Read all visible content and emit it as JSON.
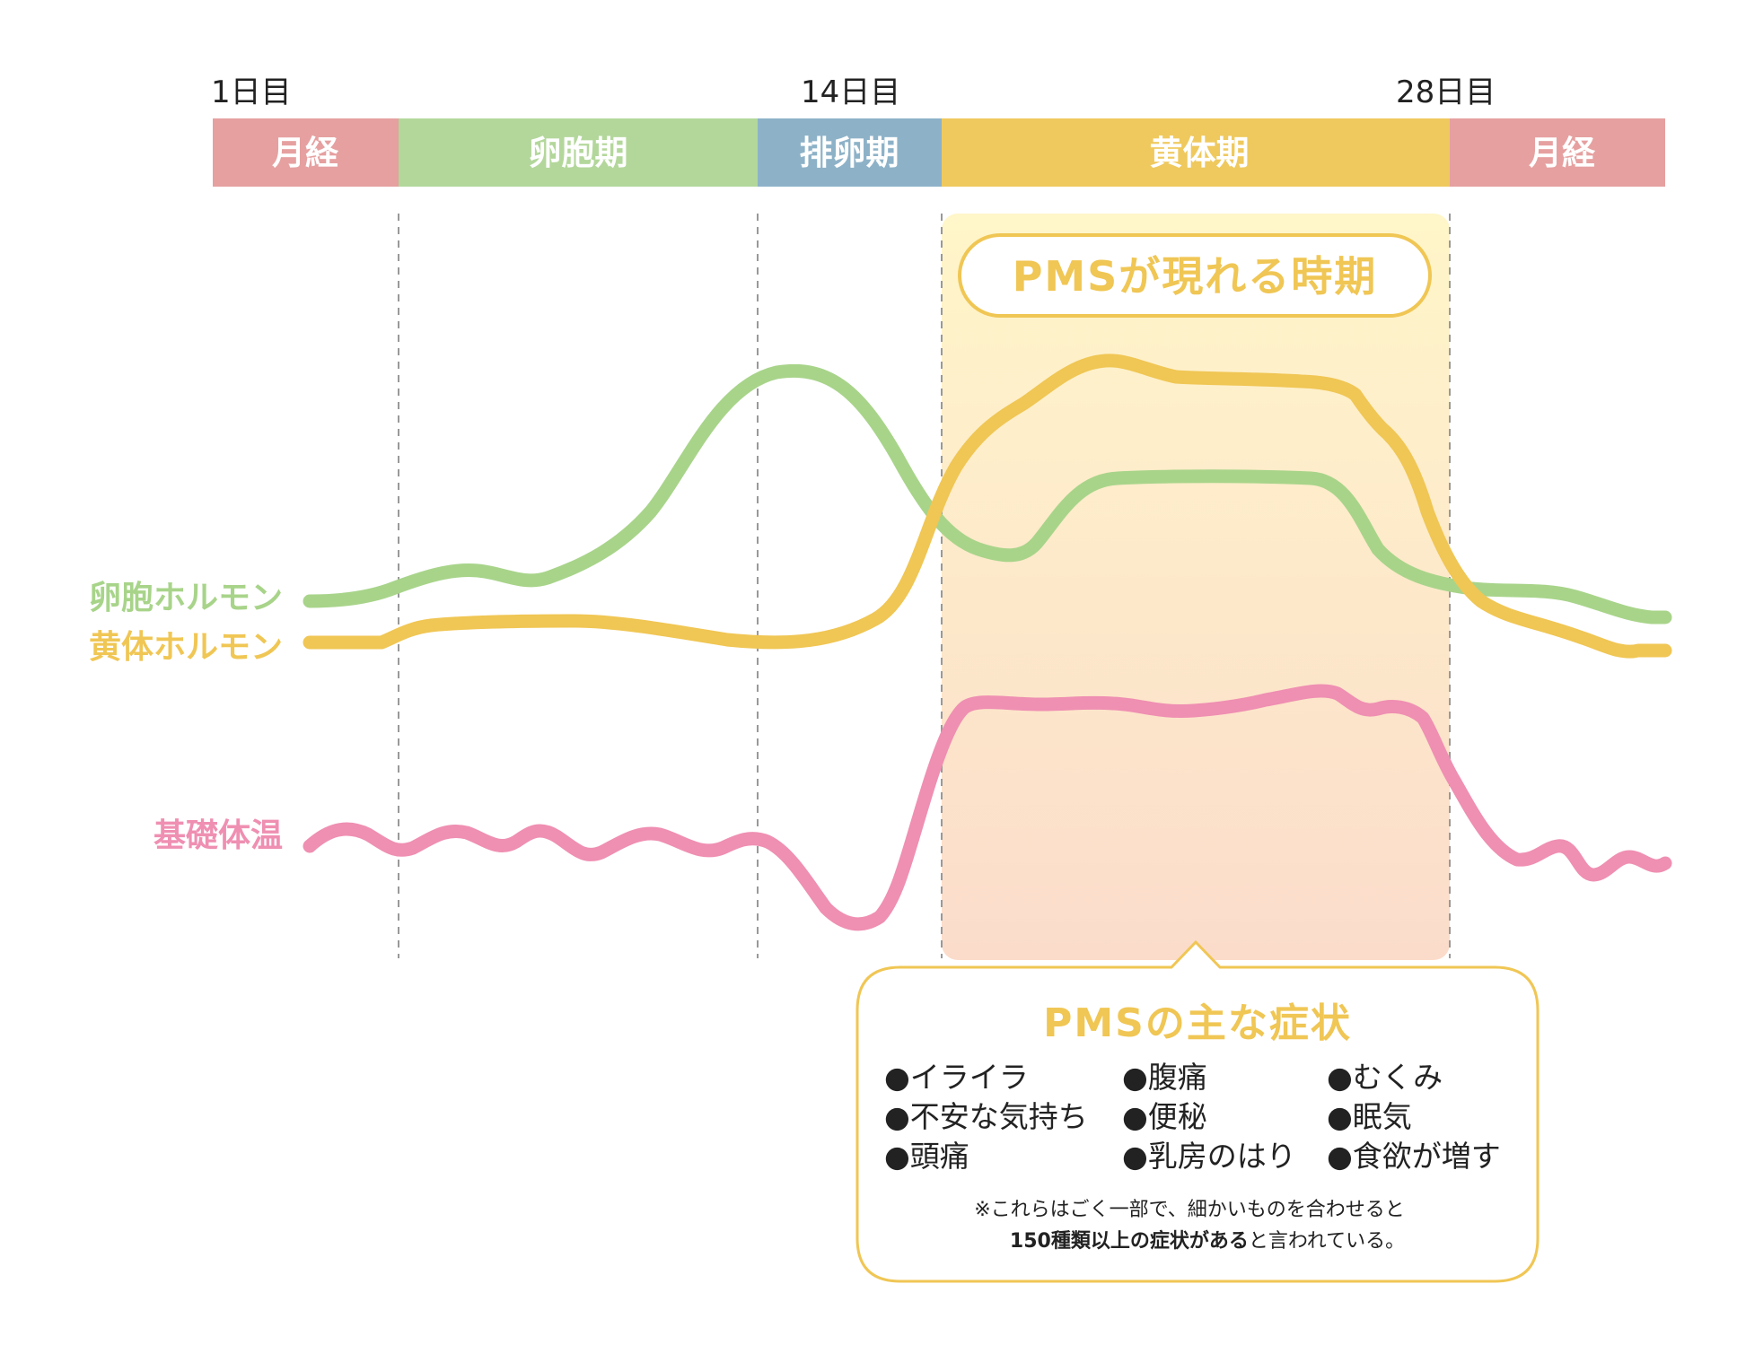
{
  "colors": {
    "menstruation": "#e6a0a0",
    "follicular": "#b3d79b",
    "ovulation": "#8db2c8",
    "luteal": "#efc95e",
    "estrogen_line": "#a8d48a",
    "progesterone_line": "#f0c654",
    "temperature_line": "#ef8fb2",
    "pms_title": "#f0c654"
  },
  "day_labels": [
    "1日目",
    "14日目",
    "28日目"
  ],
  "phases": [
    "月経",
    "卵胞期",
    "排卵期",
    "黄体期",
    "月経"
  ],
  "legend": {
    "estrogen": "卵胞ホルモン",
    "progesterone": "黄体ホルモン",
    "temperature": "基礎体温"
  },
  "pms_badge": "PMSが現れる時期",
  "pms_box": {
    "title": "PMSの主な症状",
    "symptoms": [
      [
        "●イライラ",
        "●腹痛",
        "●むくみ"
      ],
      [
        "●不安な気持ち",
        "●便秘",
        "●眠気"
      ],
      [
        "●頭痛",
        "●乳房のはり",
        "●食欲が増す"
      ]
    ],
    "note_line1": "※これらはごく一部で、細かいものを合わせると",
    "note_line2_bold": "150種類以上の症状がある",
    "note_line2_rest": "と言われている。"
  }
}
